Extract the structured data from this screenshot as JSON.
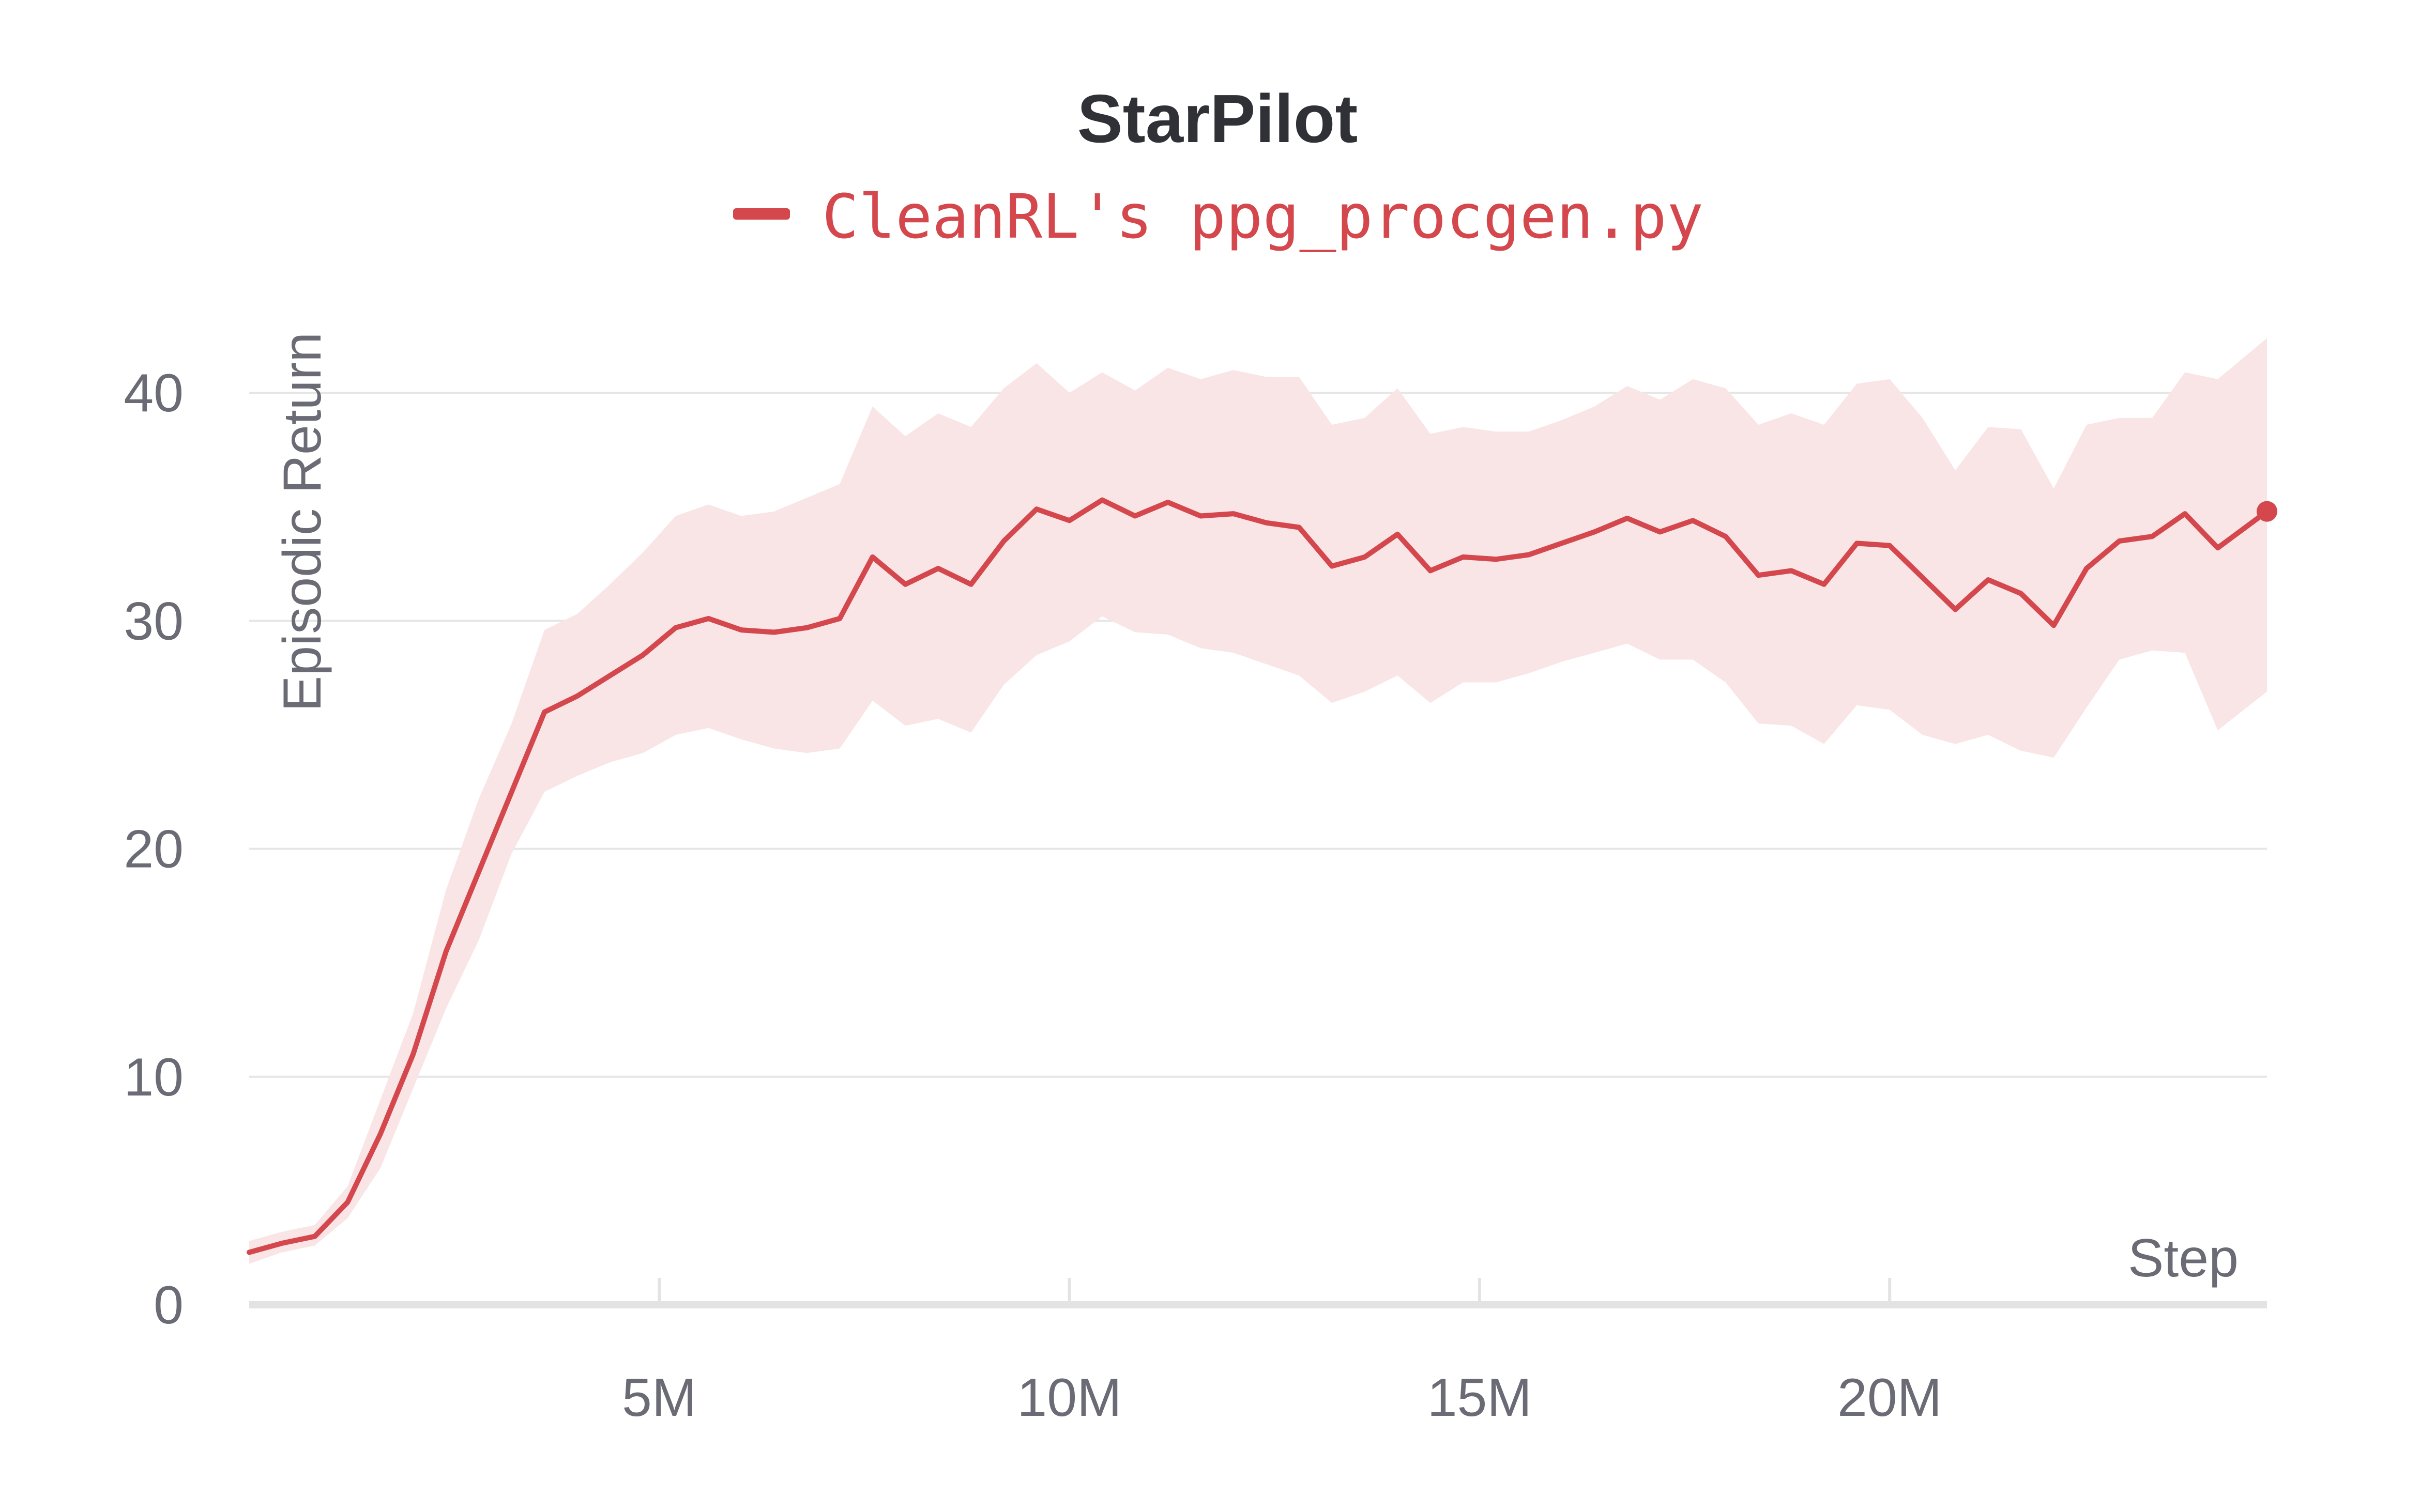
{
  "chart_data": {
    "type": "line",
    "title": "StarPilot",
    "xlabel": "Step",
    "ylabel": "Episodic Return",
    "xlim": [
      0,
      24600000
    ],
    "ylim": [
      0,
      42
    ],
    "x_ticks": [
      5000000,
      10000000,
      15000000,
      20000000
    ],
    "x_tick_labels": [
      "5M",
      "10M",
      "15M",
      "20M"
    ],
    "y_ticks": [
      0,
      10,
      20,
      30,
      40
    ],
    "y_tick_labels": [
      "0",
      "10",
      "20",
      "30",
      "40"
    ],
    "grid": true,
    "legend_position": "top-center",
    "colors": {
      "line": "#d3474d",
      "band": "#f9e4e6",
      "grid": "#e6e6e6",
      "axis": "#e3e3e3"
    },
    "series": [
      {
        "name": "CleanRL's ppg_procgen.py",
        "x": [
          0,
          400000,
          800000,
          1200000,
          1600000,
          2000000,
          2400000,
          2800000,
          3200000,
          3600000,
          4000000,
          4400000,
          4800000,
          5200000,
          5600000,
          6000000,
          6400000,
          6800000,
          7200000,
          7600000,
          8000000,
          8400000,
          8800000,
          9200000,
          9600000,
          10000000,
          10400000,
          10800000,
          11200000,
          11600000,
          12000000,
          12400000,
          12800000,
          13200000,
          13600000,
          14000000,
          14400000,
          14800000,
          15200000,
          15600000,
          16000000,
          16400000,
          16800000,
          17200000,
          17600000,
          18000000,
          18400000,
          18800000,
          19200000,
          19600000,
          20000000,
          20400000,
          20800000,
          21200000,
          21600000,
          22000000,
          22400000,
          22800000,
          23200000,
          23600000,
          24000000,
          24600000
        ],
        "y": [
          2.3,
          2.7,
          3.0,
          4.5,
          7.5,
          11.0,
          15.5,
          19.0,
          22.5,
          26.0,
          26.7,
          27.6,
          28.5,
          29.7,
          30.1,
          29.6,
          29.5,
          29.7,
          30.1,
          32.8,
          31.6,
          32.3,
          31.6,
          33.5,
          34.9,
          34.4,
          35.3,
          34.6,
          35.2,
          34.6,
          34.7,
          34.3,
          34.1,
          32.4,
          32.8,
          33.8,
          32.2,
          32.8,
          32.7,
          32.9,
          33.4,
          33.9,
          34.5,
          33.9,
          34.4,
          33.7,
          32.0,
          32.2,
          31.6,
          33.4,
          33.3,
          31.9,
          30.5,
          31.8,
          31.2,
          29.8,
          32.3,
          33.5,
          33.7,
          34.7,
          33.2,
          34.8
        ],
        "lower": [
          1.8,
          2.3,
          2.6,
          3.8,
          6.0,
          9.5,
          13.0,
          16.0,
          19.8,
          22.5,
          23.2,
          23.8,
          24.2,
          25.0,
          25.3,
          24.8,
          24.4,
          24.2,
          24.4,
          26.5,
          25.4,
          25.7,
          25.1,
          27.2,
          28.5,
          29.1,
          30.2,
          29.5,
          29.4,
          28.8,
          28.6,
          28.1,
          27.6,
          26.4,
          26.9,
          27.6,
          26.4,
          27.3,
          27.3,
          27.7,
          28.2,
          28.6,
          29.0,
          28.3,
          28.3,
          27.3,
          25.5,
          25.4,
          24.6,
          26.3,
          26.1,
          25.0,
          24.6,
          25.0,
          24.3,
          24.0,
          26.2,
          28.3,
          28.7,
          28.6,
          25.2,
          26.9
        ],
        "upper": [
          2.8,
          3.2,
          3.5,
          5.2,
          9.0,
          12.8,
          18.2,
          22.2,
          25.5,
          29.6,
          30.3,
          31.6,
          33.0,
          34.6,
          35.1,
          34.6,
          34.8,
          35.4,
          36.0,
          39.4,
          38.1,
          39.1,
          38.5,
          40.2,
          41.3,
          40.0,
          40.9,
          40.1,
          41.1,
          40.6,
          41.0,
          40.7,
          40.7,
          38.6,
          38.9,
          40.2,
          38.2,
          38.5,
          38.3,
          38.3,
          38.8,
          39.4,
          40.3,
          39.7,
          40.6,
          40.2,
          38.6,
          39.1,
          38.6,
          40.4,
          40.6,
          38.9,
          36.6,
          38.5,
          38.4,
          35.8,
          38.6,
          38.9,
          38.9,
          40.9,
          40.6,
          42.4
        ]
      }
    ]
  }
}
